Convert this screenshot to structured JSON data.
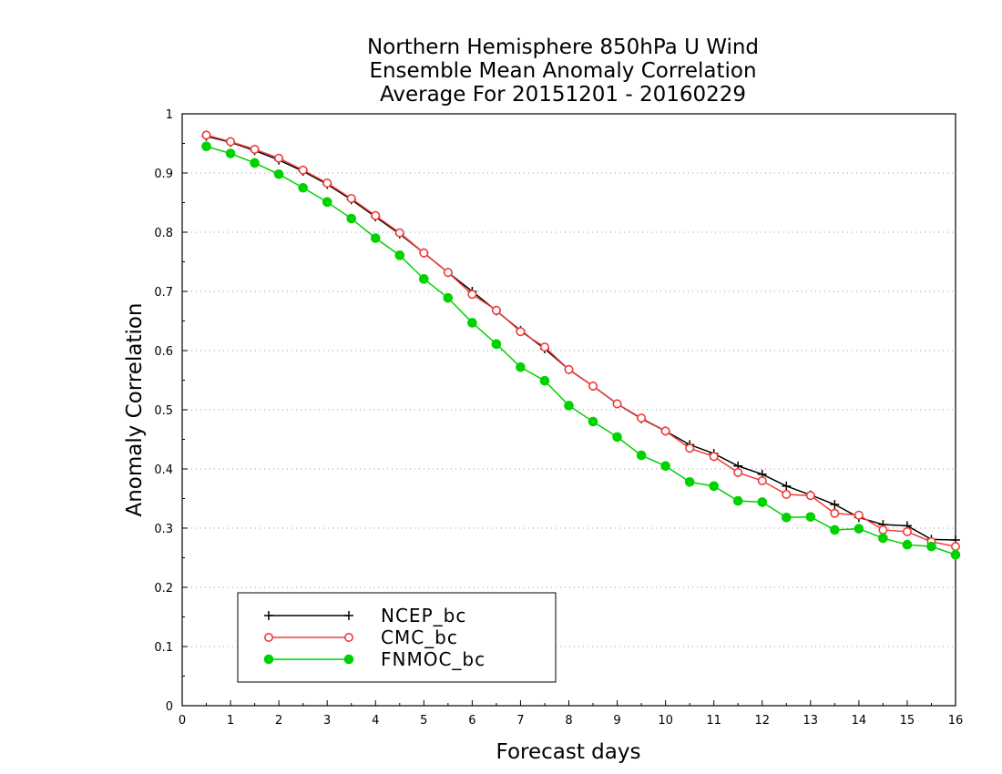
{
  "chart_data": {
    "type": "line",
    "title": [
      "Northern Hemisphere 850hPa U Wind",
      "Ensemble Mean Anomaly Correlation",
      "Average For 20151201 - 20160229"
    ],
    "xlabel": "Forecast days",
    "ylabel": "Anomaly Correlation",
    "xlim": [
      0,
      16
    ],
    "ylim": [
      0,
      1
    ],
    "xticks": [
      "0",
      "1",
      "2",
      "3",
      "4",
      "5",
      "6",
      "7",
      "8",
      "9",
      "10",
      "11",
      "12",
      "13",
      "14",
      "15",
      "16"
    ],
    "yticks": [
      "0",
      "0.1",
      "0.2",
      "0.3",
      "0.4",
      "0.5",
      "0.6",
      "0.7",
      "0.8",
      "0.9",
      "1"
    ],
    "grid": "horizontal dotted",
    "legend_position": "bottom-left",
    "x": [
      0.5,
      1,
      1.5,
      2,
      2.5,
      3,
      3.5,
      4,
      4.5,
      5,
      5.5,
      6,
      6.5,
      7,
      7.5,
      8,
      8.5,
      9,
      9.5,
      10,
      10.5,
      11,
      11.5,
      12,
      12.5,
      13,
      13.5,
      14,
      14.5,
      15,
      15.5,
      16
    ],
    "series": [
      {
        "name": "NCEP_bc",
        "color": "#000000",
        "marker": "plus",
        "values": [
          0.962,
          0.952,
          0.938,
          0.922,
          0.903,
          0.881,
          0.855,
          0.826,
          0.797,
          0.765,
          0.732,
          0.7,
          0.667,
          0.634,
          0.603,
          0.568,
          0.54,
          0.51,
          0.485,
          0.464,
          0.441,
          0.426,
          0.405,
          0.391,
          0.371,
          0.356,
          0.34,
          0.318,
          0.306,
          0.304,
          0.281,
          0.28
        ]
      },
      {
        "name": "CMC_bc",
        "color": "#f03c3c",
        "marker": "open-circle",
        "values": [
          0.964,
          0.953,
          0.94,
          0.925,
          0.905,
          0.883,
          0.857,
          0.828,
          0.799,
          0.765,
          0.732,
          0.695,
          0.668,
          0.632,
          0.606,
          0.568,
          0.54,
          0.51,
          0.486,
          0.464,
          0.435,
          0.421,
          0.394,
          0.38,
          0.357,
          0.355,
          0.325,
          0.322,
          0.297,
          0.294,
          0.277,
          0.269
        ]
      },
      {
        "name": "FNMOC_bc",
        "color": "#00d200",
        "marker": "filled-circle",
        "values": [
          0.945,
          0.933,
          0.917,
          0.898,
          0.875,
          0.851,
          0.823,
          0.79,
          0.761,
          0.721,
          0.689,
          0.647,
          0.611,
          0.572,
          0.549,
          0.507,
          0.48,
          0.454,
          0.423,
          0.405,
          0.378,
          0.371,
          0.346,
          0.344,
          0.318,
          0.319,
          0.297,
          0.299,
          0.283,
          0.272,
          0.269,
          0.255
        ]
      }
    ]
  }
}
